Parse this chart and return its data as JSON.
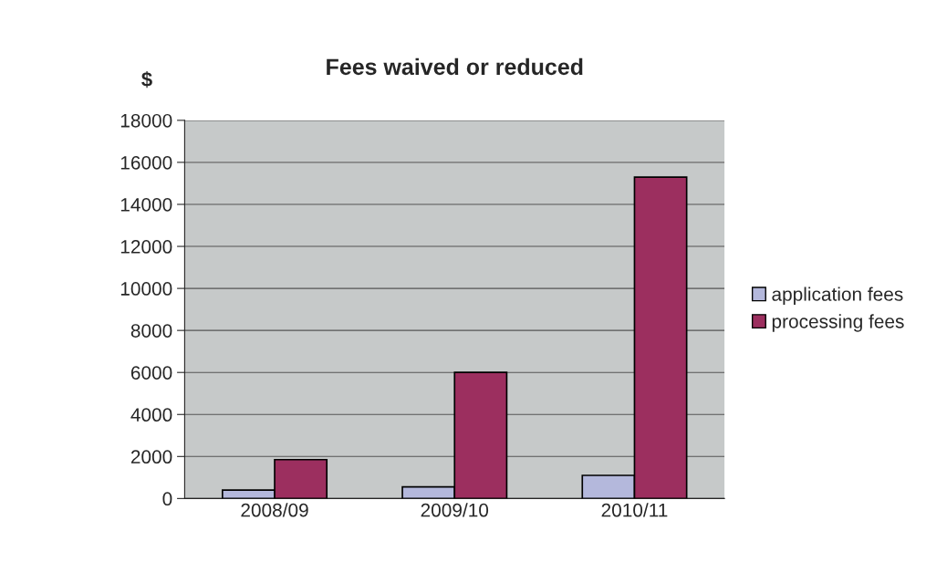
{
  "chart_data": {
    "type": "bar",
    "title": "Fees waived or reduced",
    "ylabel": "$",
    "categories": [
      "2008/09",
      "2009/10",
      "2010/11"
    ],
    "series": [
      {
        "name": "application fees",
        "color": "#b4b8dc",
        "values": [
          400,
          550,
          1100
        ]
      },
      {
        "name": "processing fees",
        "color": "#9c2f5f",
        "values": [
          1850,
          6000,
          15300
        ]
      }
    ],
    "ylim": [
      0,
      18000
    ],
    "yticks": [
      0,
      2000,
      4000,
      6000,
      8000,
      10000,
      12000,
      14000,
      16000,
      18000
    ],
    "grid": "y",
    "legend": "right"
  }
}
